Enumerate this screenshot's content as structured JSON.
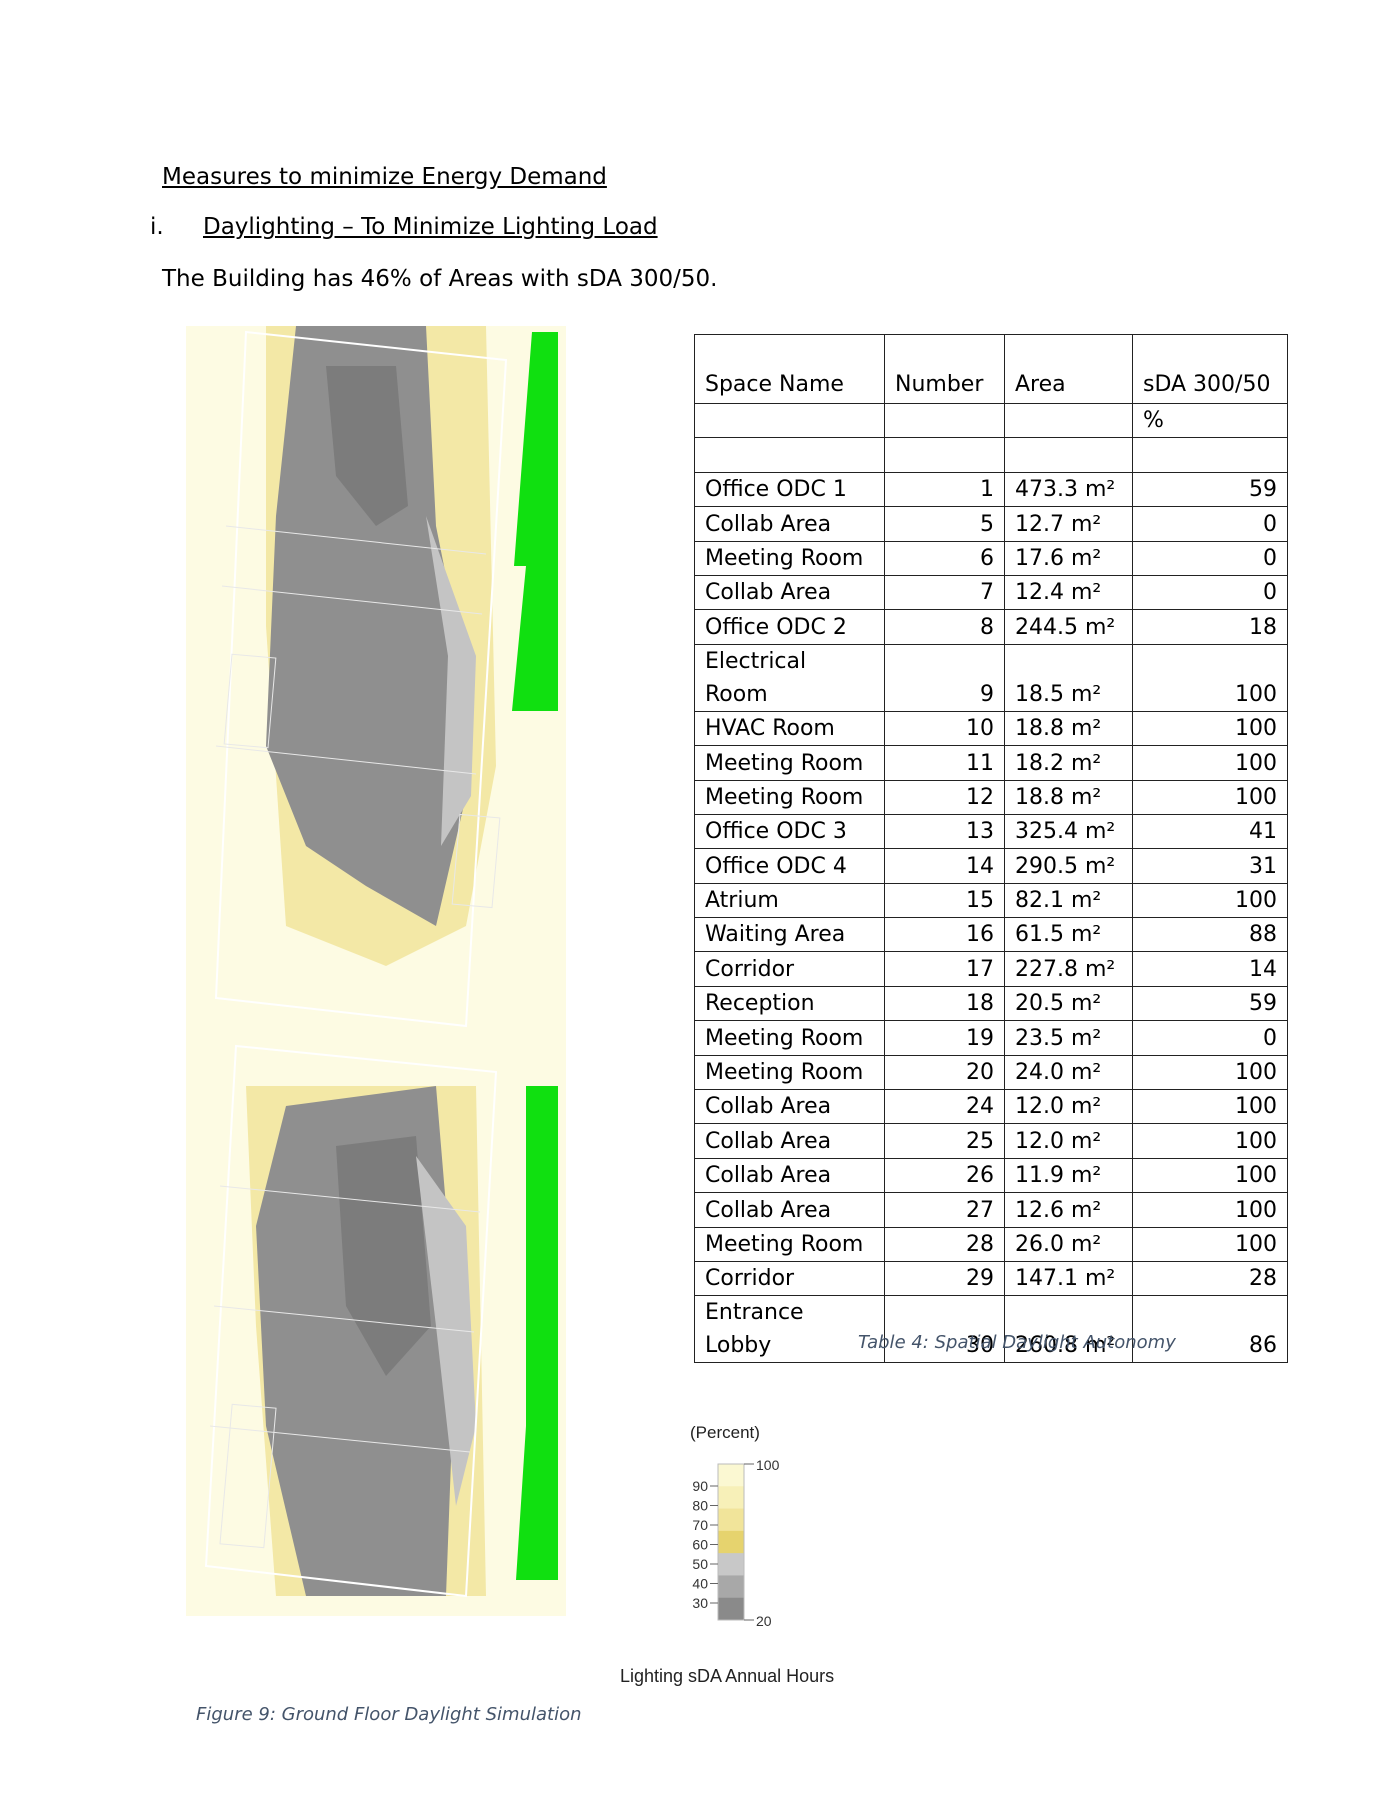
{
  "section": {
    "heading": "Measures to minimize Energy Demand",
    "sub_number": "i.",
    "sub_title": "Daylighting – To Minimize Lighting Load",
    "summary": "The Building has 46% of Areas with sDA 300/50."
  },
  "table": {
    "headers": {
      "space_name": "Space Name",
      "number": "Number",
      "area": "Area",
      "sda": "sDA 300/50",
      "sda_unit": "%"
    },
    "rows": [
      {
        "name": "Office ODC 1",
        "number": "1",
        "area": "473.3 m²",
        "sda": "59"
      },
      {
        "name": "Collab Area",
        "number": "5",
        "area": "12.7 m²",
        "sda": "0"
      },
      {
        "name": "Meeting Room",
        "number": "6",
        "area": "17.6 m²",
        "sda": "0"
      },
      {
        "name": "Collab Area",
        "number": "7",
        "area": "12.4 m²",
        "sda": "0"
      },
      {
        "name": "Office ODC 2",
        "number": "8",
        "area": "244.5 m²",
        "sda": "18"
      },
      {
        "name": "Electrical Room",
        "number": "9",
        "area": "18.5 m²",
        "sda": "100"
      },
      {
        "name": "HVAC Room",
        "number": "10",
        "area": "18.8 m²",
        "sda": "100"
      },
      {
        "name": "Meeting Room",
        "number": "11",
        "area": "18.2 m²",
        "sda": "100"
      },
      {
        "name": "Meeting Room",
        "number": "12",
        "area": "18.8 m²",
        "sda": "100"
      },
      {
        "name": "Office ODC 3",
        "number": "13",
        "area": "325.4 m²",
        "sda": "41"
      },
      {
        "name": "Office ODC 4",
        "number": "14",
        "area": "290.5 m²",
        "sda": "31"
      },
      {
        "name": "Atrium",
        "number": "15",
        "area": "82.1 m²",
        "sda": "100"
      },
      {
        "name": "Waiting Area",
        "number": "16",
        "area": "61.5 m²",
        "sda": "88"
      },
      {
        "name": "Corridor",
        "number": "17",
        "area": "227.8 m²",
        "sda": "14"
      },
      {
        "name": "Reception",
        "number": "18",
        "area": "20.5 m²",
        "sda": "59"
      },
      {
        "name": "Meeting Room",
        "number": "19",
        "area": "23.5 m²",
        "sda": "0"
      },
      {
        "name": "Meeting Room",
        "number": "20",
        "area": "24.0 m²",
        "sda": "100"
      },
      {
        "name": "Collab Area",
        "number": "24",
        "area": "12.0 m²",
        "sda": "100"
      },
      {
        "name": "Collab Area",
        "number": "25",
        "area": "12.0 m²",
        "sda": "100"
      },
      {
        "name": "Collab Area",
        "number": "26",
        "area": "11.9 m²",
        "sda": "100"
      },
      {
        "name": "Collab Area",
        "number": "27",
        "area": "12.6 m²",
        "sda": "100"
      },
      {
        "name": "Meeting Room",
        "number": "28",
        "area": "26.0 m²",
        "sda": "100"
      },
      {
        "name": "Corridor",
        "number": "29",
        "area": "147.1 m²",
        "sda": "28"
      },
      {
        "name": "Entrance Lobby",
        "number": "30",
        "area": "260.8 m²",
        "sda": "86"
      }
    ],
    "caption": "Table 4: Spatial Daylight Autonomy"
  },
  "figure": {
    "caption": "Figure 9: Ground Floor Daylight Simulation"
  },
  "legend": {
    "unit": "(Percent)",
    "top_value": "100",
    "bottom_value": "20",
    "ticks": [
      "90",
      "80",
      "70",
      "60",
      "50",
      "40",
      "30"
    ],
    "title": "Lighting sDA Annual Hours",
    "colors": [
      "#fbf8d2",
      "#f7f0b8",
      "#f1e49a",
      "#e6d36e",
      "#c8c8c8",
      "#a8a8a8",
      "#8a8a8a"
    ]
  }
}
